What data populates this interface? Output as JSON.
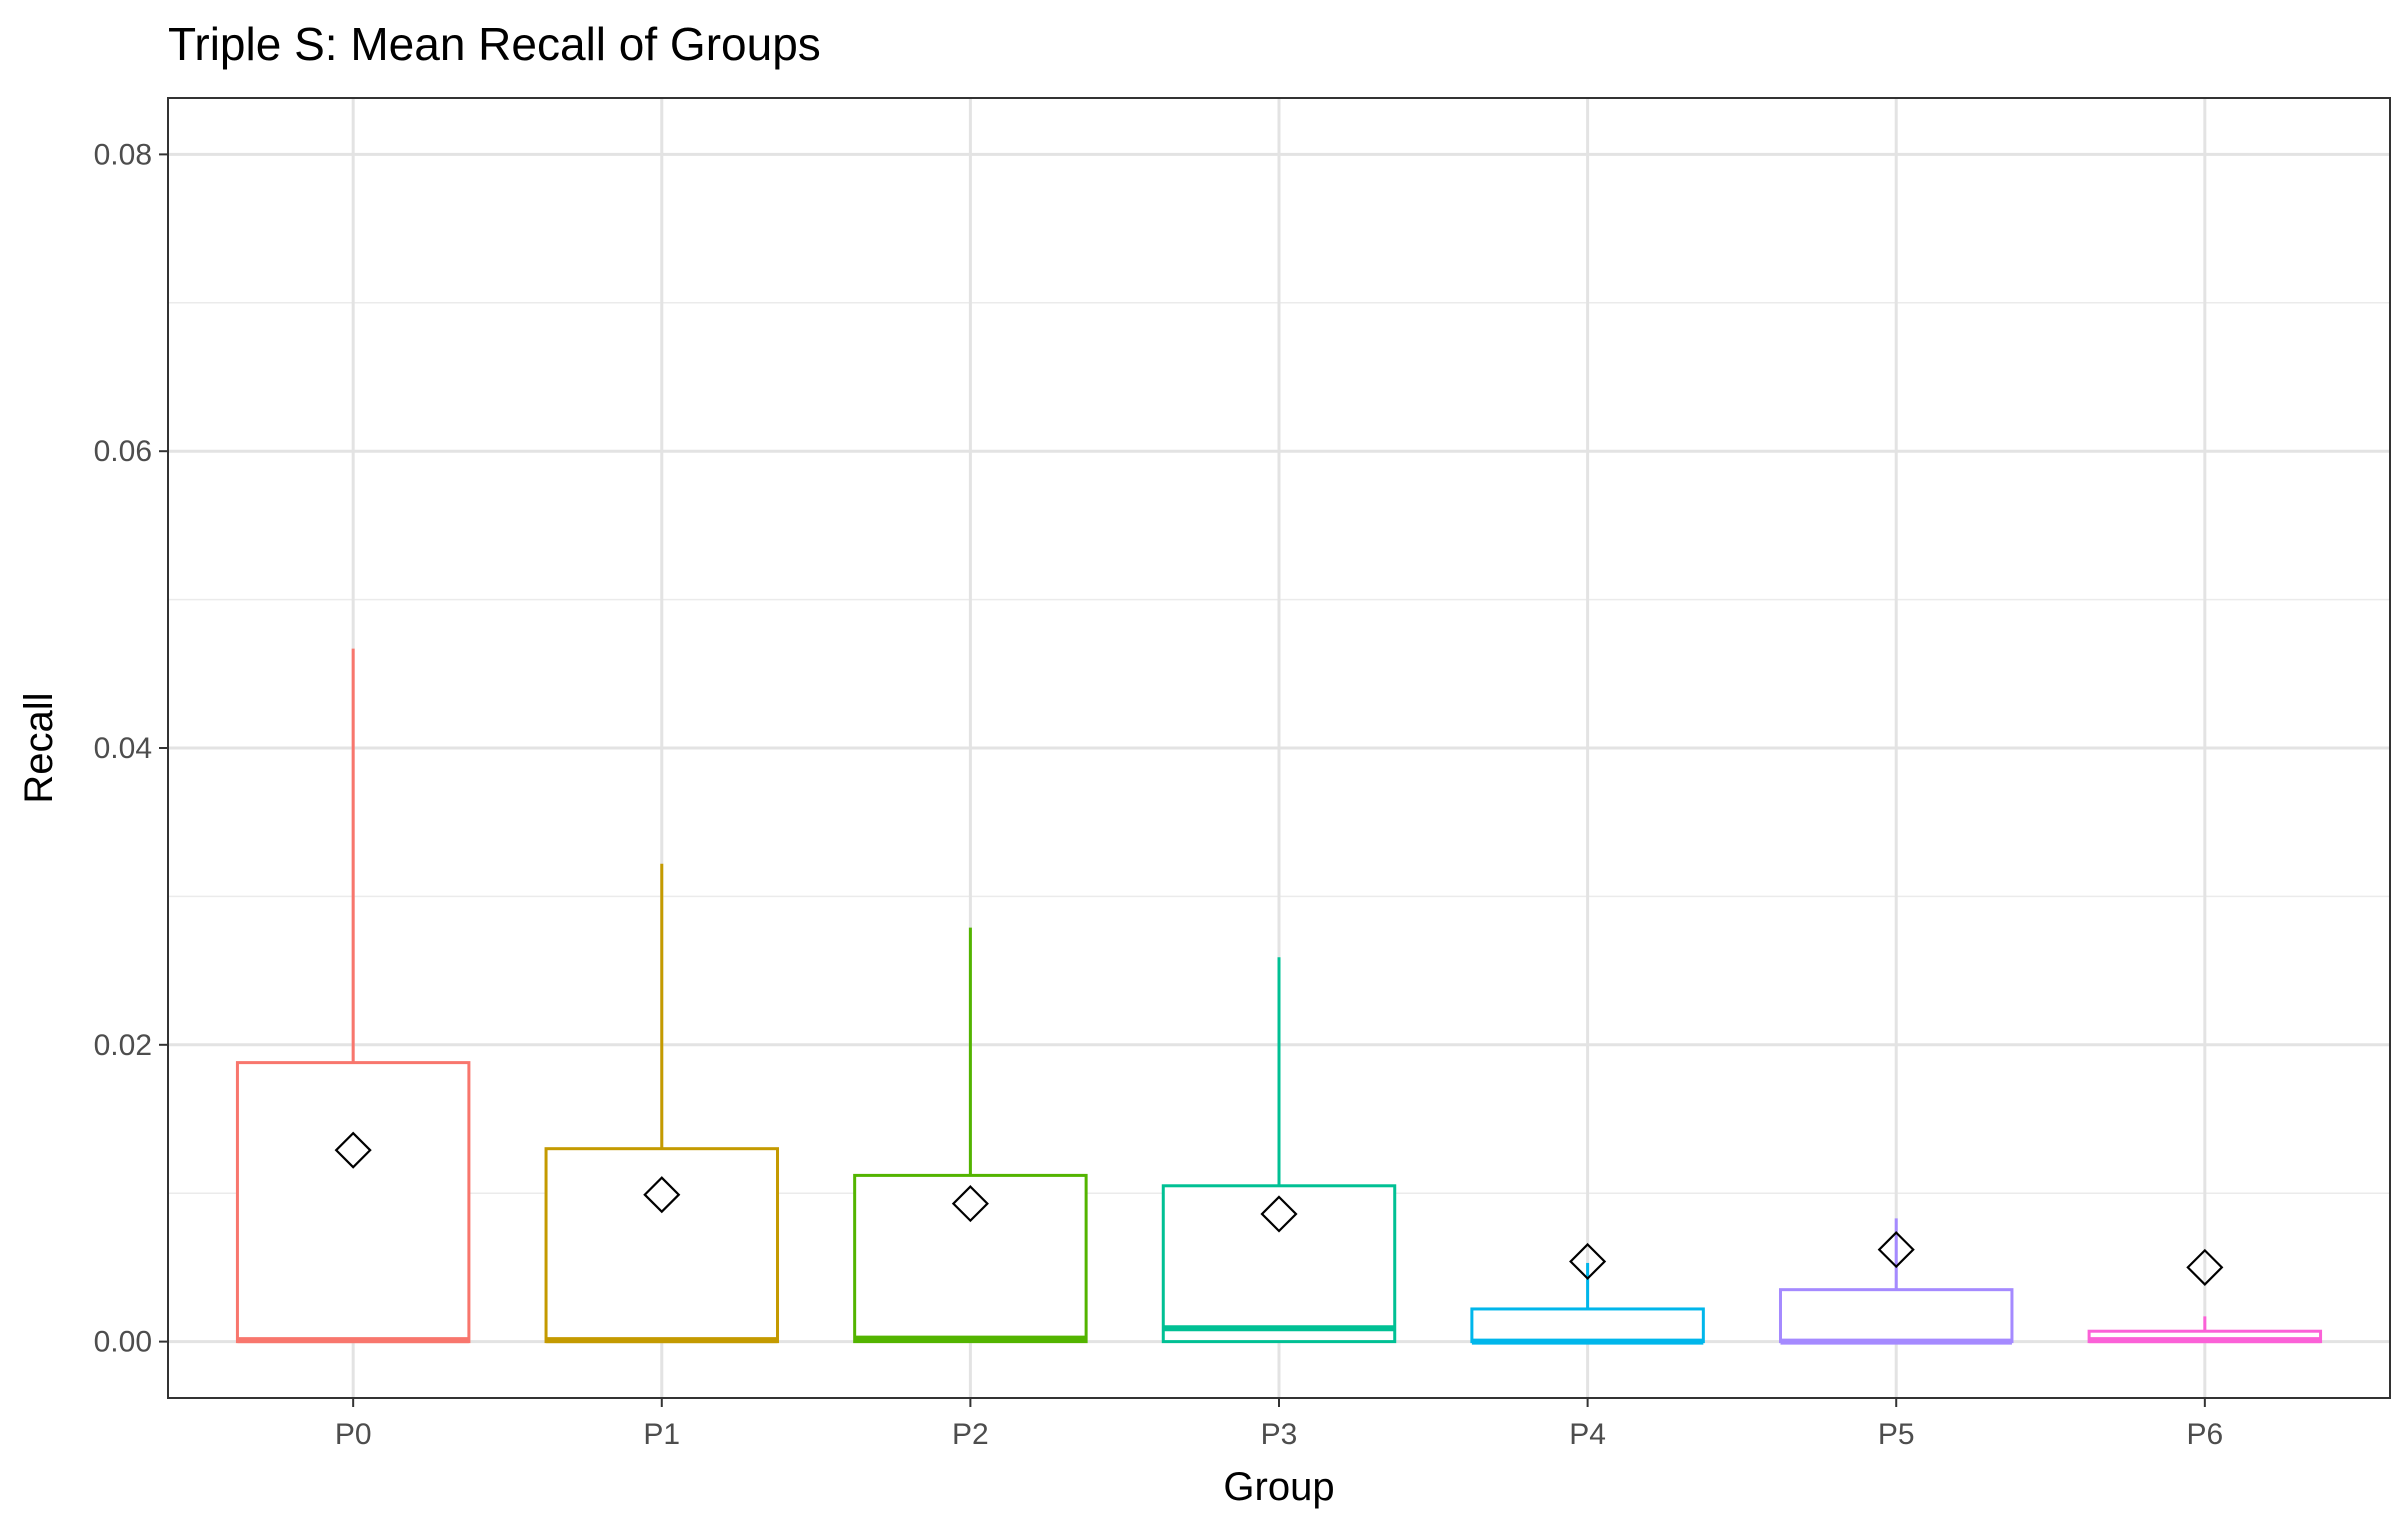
{
  "chart_data": {
    "type": "box",
    "title": "Triple S: Mean Recall of Groups",
    "xlabel": "Group",
    "ylabel": "Recall",
    "categories": [
      "P0",
      "P1",
      "P2",
      "P3",
      "P4",
      "P5",
      "P6"
    ],
    "ylim": [
      -0.0038,
      0.0838
    ],
    "yticks": [
      0.0,
      0.02,
      0.04,
      0.06,
      0.08
    ],
    "ytick_labels": [
      "0.00",
      "0.02",
      "0.04",
      "0.06",
      "0.08"
    ],
    "grid": true,
    "legend": "none",
    "boxes": [
      {
        "group": "P0",
        "color": "#F8766D",
        "whisker_low": 0.0,
        "q1": 0.0,
        "median": 0.0001,
        "q3": 0.0188,
        "whisker_high": 0.0467,
        "mean": 0.0129
      },
      {
        "group": "P1",
        "color": "#C49A00",
        "whisker_low": 0.0,
        "q1": 0.0,
        "median": 0.0001,
        "q3": 0.013,
        "whisker_high": 0.0322,
        "mean": 0.0099
      },
      {
        "group": "P2",
        "color": "#53B400",
        "whisker_low": 0.0,
        "q1": 0.0,
        "median": 0.0002,
        "q3": 0.0112,
        "whisker_high": 0.0279,
        "mean": 0.0093
      },
      {
        "group": "P3",
        "color": "#00C094",
        "whisker_low": 0.0,
        "q1": 0.0,
        "median": 0.0009,
        "q3": 0.0105,
        "whisker_high": 0.0259,
        "mean": 0.0086
      },
      {
        "group": "P4",
        "color": "#00B6EB",
        "whisker_low": 0.0,
        "q1": 0.0,
        "median": 0.0,
        "q3": 0.0022,
        "whisker_high": 0.0053,
        "mean": 0.0054
      },
      {
        "group": "P5",
        "color": "#A58AFF",
        "whisker_low": 0.0,
        "q1": 0.0,
        "median": 0.0,
        "q3": 0.0035,
        "whisker_high": 0.0083,
        "mean": 0.0062
      },
      {
        "group": "P6",
        "color": "#FB61D7",
        "whisker_low": 0.0,
        "q1": 0.0,
        "median": 0.0001,
        "q3": 0.0007,
        "whisker_high": 0.0017,
        "mean": 0.005
      }
    ],
    "mean_marker": "diamond"
  }
}
